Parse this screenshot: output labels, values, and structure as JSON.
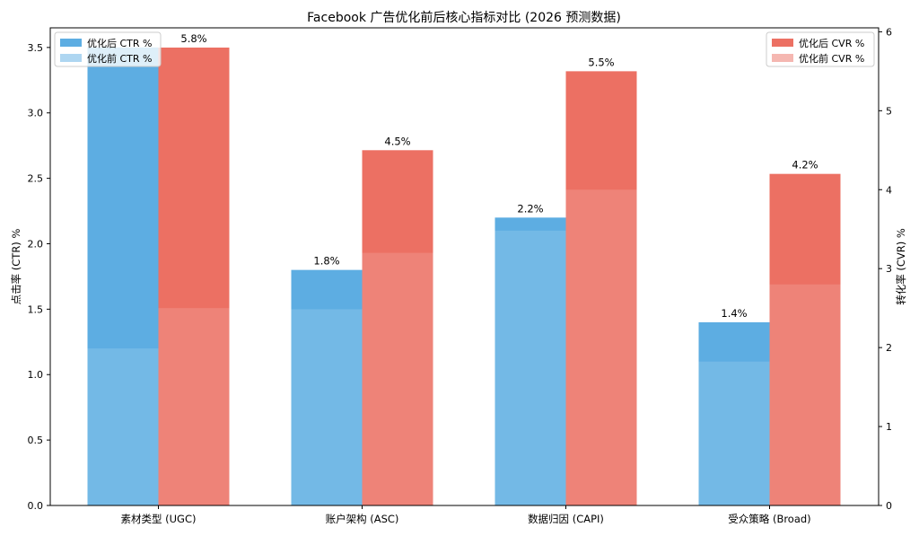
{
  "chart_data": {
    "type": "bar",
    "title": "Facebook 广告优化前后核心指标对比 (2026 预测数据)",
    "categories": [
      "素材类型 (UGC)",
      "账户架构 (ASC)",
      "数据归因 (CAPI)",
      "受众策略 (Broad)"
    ],
    "left_axis": {
      "label": "点击率 (CTR) %",
      "ylim": [
        0,
        3.65
      ],
      "ticks": [
        0.0,
        0.5,
        1.0,
        1.5,
        2.0,
        2.5,
        3.0,
        3.5
      ],
      "tick_labels": [
        "0.0",
        "0.5",
        "1.0",
        "1.5",
        "2.0",
        "2.5",
        "3.0",
        "3.5"
      ]
    },
    "right_axis": {
      "label": "转化率 (CVR) %",
      "ylim": [
        0,
        6.05
      ],
      "ticks": [
        0,
        1,
        2,
        3,
        4,
        5,
        6
      ],
      "tick_labels": [
        "0",
        "1",
        "2",
        "3",
        "4",
        "5",
        "6"
      ]
    },
    "series": [
      {
        "name": "优化后 CTR %",
        "axis": "left",
        "values": [
          3.5,
          1.8,
          2.2,
          1.4
        ],
        "color": "#5dade2"
      },
      {
        "name": "优化前 CTR %",
        "axis": "left",
        "values": [
          1.2,
          1.5,
          2.1,
          1.1
        ],
        "color": "#aed6f1"
      },
      {
        "name": "优化后 CVR %",
        "axis": "right",
        "values": [
          5.8,
          4.5,
          5.5,
          4.2
        ],
        "color": "#ec7063"
      },
      {
        "name": "优化前 CVR %",
        "axis": "right",
        "values": [
          2.5,
          3.2,
          4.0,
          2.8
        ],
        "color": "#f5b7b1"
      }
    ],
    "data_labels": {
      "ctr": [
        "",
        "1.8%",
        "2.2%",
        "1.4%"
      ],
      "cvr": [
        "5.8%",
        "4.5%",
        "5.5%",
        "4.2%"
      ]
    },
    "legend_left": {
      "placement": "top-left",
      "entries": [
        "优化后 CTR %",
        "优化前 CTR %"
      ]
    },
    "legend_right": {
      "placement": "top-right",
      "entries": [
        "优化后 CVR %",
        "优化前 CVR %"
      ]
    },
    "grid": false
  }
}
